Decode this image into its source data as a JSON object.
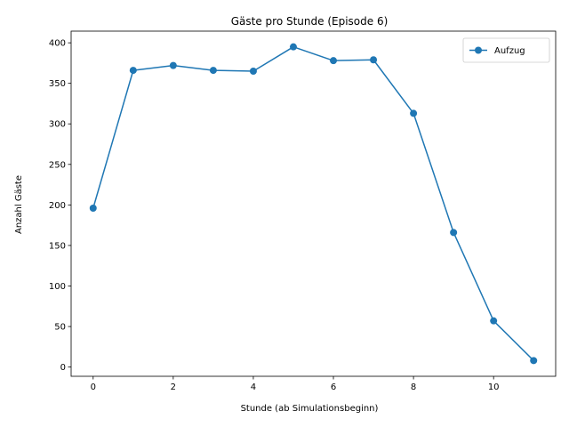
{
  "chart_data": {
    "type": "line",
    "title": "Gäste pro Stunde (Episode 6)",
    "xlabel": "Stunde (ab Simulationsbeginn)",
    "ylabel": "Anzahl Gäste",
    "xlim": [
      -0.55,
      11.55
    ],
    "ylim": [
      -11.4,
      414.4
    ],
    "xticks": [
      0,
      2,
      4,
      6,
      8,
      10
    ],
    "yticks": [
      0,
      50,
      100,
      150,
      200,
      250,
      300,
      350,
      400
    ],
    "grid": false,
    "legend_position": "top-right",
    "series": [
      {
        "name": "Aufzug",
        "color": "#1f77b4",
        "marker": "circle",
        "x": [
          0,
          1,
          2,
          3,
          4,
          5,
          6,
          7,
          8,
          9,
          10,
          11
        ],
        "y": [
          196,
          366,
          372,
          366,
          365,
          395,
          378,
          379,
          313,
          166,
          57,
          8
        ]
      }
    ]
  }
}
